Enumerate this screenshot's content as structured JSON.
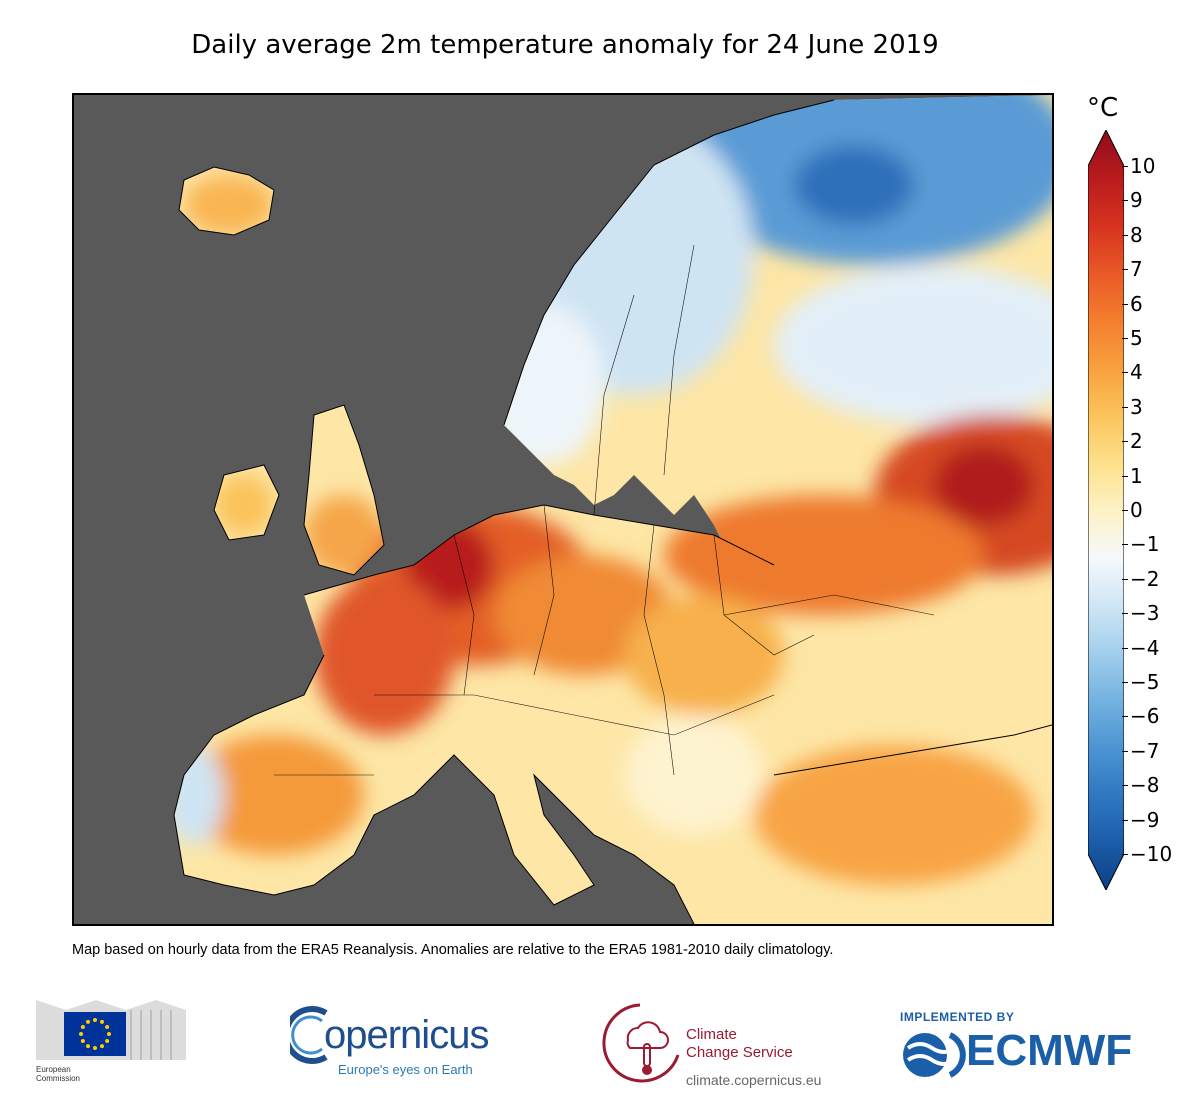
{
  "title": "Daily average 2m temperature anomaly for 24 June 2019",
  "colorbar": {
    "unit": "°C",
    "ticks": [
      "10",
      "9",
      "8",
      "7",
      "6",
      "5",
      "4",
      "3",
      "2",
      "1",
      "0",
      "−1",
      "−2",
      "−3",
      "−4",
      "−5",
      "−6",
      "−7",
      "−8",
      "−9",
      "−10"
    ],
    "range": [
      -10,
      10
    ],
    "colors": [
      "#0b3f86",
      "#1c5ca8",
      "#2f78c2",
      "#4c95d2",
      "#74b2e0",
      "#a2cfec",
      "#cfe6f5",
      "#f6f9fc",
      "#fdf1c4",
      "#fde08a",
      "#fbc35a",
      "#f8a03e",
      "#f47d2e",
      "#e85826",
      "#d6321f",
      "#b81b1d",
      "#8f0c1a"
    ]
  },
  "footnote": "Map based on hourly data from the ERA5 Reanalysis. Anomalies are relative to the ERA5 1981-2010 daily climatology.",
  "logos": {
    "ec": {
      "line1": "European",
      "line2": "Commission"
    },
    "copernicus": {
      "name": "opernicus",
      "tagline": "Europe's eyes on Earth"
    },
    "c3s": {
      "line1": "Climate",
      "line2": "Change Service",
      "url": "climate.copernicus.eu"
    },
    "ecmwf": {
      "implemented": "IMPLEMENTED BY",
      "name": "ECMWF"
    }
  },
  "colors": {
    "sea": "#595959",
    "eu_blue": "#003399",
    "eu_star": "#ffcc00",
    "c3s_red": "#9b1b30",
    "ecmwf_blue": "#1a5fa8"
  }
}
